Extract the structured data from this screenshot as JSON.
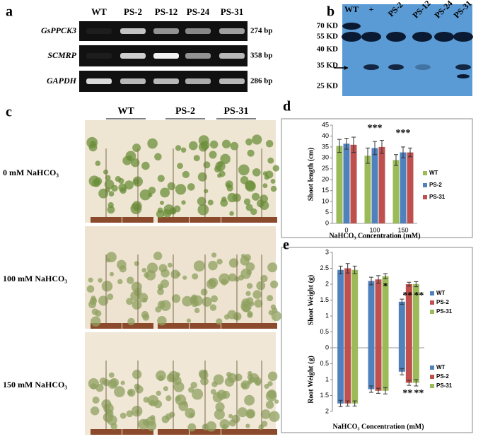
{
  "panel_labels": [
    "a",
    "b",
    "c",
    "d",
    "e"
  ],
  "gel": {
    "lanes": [
      "WT",
      "PS-2",
      "PS-12",
      "PS-24",
      "PS-31"
    ],
    "rows": [
      {
        "gene": "GsPPCK3",
        "size": "274 bp"
      },
      {
        "gene": "SCMRP",
        "size": "358 bp"
      },
      {
        "gene": "GAPDH",
        "size": "286 bp"
      }
    ]
  },
  "blot": {
    "lanes": [
      "WT",
      "+",
      "PS-2",
      "PS-12",
      "PS-24",
      "PS-31"
    ],
    "markers": [
      "70 KD",
      "55 KD",
      "40 KD",
      "35 KD",
      "25 KD"
    ]
  },
  "photos": {
    "genotypes": [
      "WT",
      "PS-2",
      "PS-31"
    ],
    "conditions": [
      "0 mM NaHCO₃",
      "100 mM NaHCO₃",
      "150 mM NaHCO₃"
    ]
  },
  "chart_data": [
    {
      "type": "bar",
      "categories": [
        "0",
        "100",
        "150"
      ],
      "x_label": "NaHCO₃ Concentration (mM)",
      "y_label": "Shoot length (cm)",
      "ylim": [
        0,
        45
      ],
      "yticks": [
        0,
        5,
        10,
        15,
        20,
        25,
        30,
        35,
        40,
        45
      ],
      "legend": "right",
      "series": [
        {
          "name": "WT",
          "color": "#9bbb59",
          "values": [
            35.5,
            31,
            29
          ],
          "errors": [
            3,
            3.5,
            2.5
          ]
        },
        {
          "name": "PS-2",
          "color": "#4f81bd",
          "values": [
            36.5,
            34.5,
            32.5
          ],
          "errors": [
            2.5,
            3,
            2.5
          ]
        },
        {
          "name": "PS-31",
          "color": "#c0504d",
          "values": [
            36,
            35,
            32.5
          ],
          "errors": [
            3.5,
            3,
            2
          ]
        }
      ],
      "annotations": [
        "***",
        "***"
      ]
    },
    {
      "type": "bar",
      "categories": [
        null,
        null,
        null
      ],
      "x_label": "NaHCO₃ Concentration (mM)",
      "y_label": "Shoot Weight (g)",
      "y2_label": "Root Weight (g)",
      "ylim": [
        0,
        3
      ],
      "yticks": [
        0,
        0.5,
        1,
        1.5,
        2,
        2.5,
        3
      ],
      "y2lim": [
        0,
        2
      ],
      "y2ticks": [
        0.5,
        1,
        1.5,
        2
      ],
      "y2_inverted": true,
      "legend": "right",
      "series": [
        {
          "name": "WT",
          "color": "#4f81bd",
          "values": [
            2.45,
            2.1,
            1.45
          ],
          "errors": [
            0.12,
            0.12,
            0.08
          ]
        },
        {
          "name": "PS-2",
          "color": "#c0504d",
          "values": [
            2.5,
            2.15,
            2.0
          ],
          "errors": [
            0.15,
            0.12,
            0.06
          ]
        },
        {
          "name": "PS-31",
          "color": "#9bbb59",
          "values": [
            2.45,
            2.25,
            2.0
          ],
          "errors": [
            0.12,
            0.08,
            0.08
          ]
        },
        {
          "name": "WT",
          "color": "#4f81bd",
          "axis": "y2",
          "values": [
            1.75,
            1.3,
            0.75
          ],
          "errors": [
            0.1,
            0.1,
            0.1
          ]
        },
        {
          "name": "PS-2",
          "color": "#c0504d",
          "axis": "y2",
          "values": [
            1.75,
            1.35,
            1.1
          ],
          "errors": [
            0.08,
            0.08,
            0.08
          ]
        },
        {
          "name": "PS-31",
          "color": "#9bbb59",
          "axis": "y2",
          "values": [
            1.75,
            1.35,
            1.1
          ],
          "errors": [
            0.08,
            0.1,
            0.1
          ]
        }
      ],
      "annotations": [
        "*",
        "**",
        "**",
        "**",
        "**"
      ]
    }
  ]
}
